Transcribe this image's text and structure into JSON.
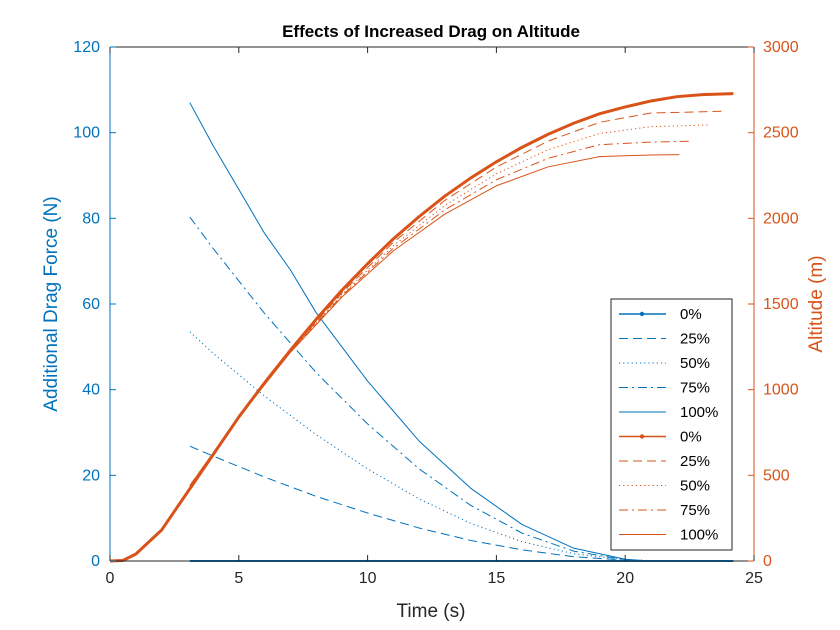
{
  "chart_data": {
    "type": "line",
    "title": "Effects of Increased Drag on Altitude",
    "xlabel": "Time (s)",
    "ylabel_left": "Additional Drag Force (N)",
    "ylabel_right": "Altitude (m)",
    "xlim": [
      0,
      25
    ],
    "ylim_left": [
      0,
      120
    ],
    "ylim_right": [
      0,
      3000
    ],
    "xticks": [
      "0",
      "5",
      "10",
      "15",
      "20",
      "25"
    ],
    "yticks_left": [
      "0",
      "20",
      "40",
      "60",
      "80",
      "100",
      "120"
    ],
    "yticks_right": [
      "0",
      "500",
      "1000",
      "1500",
      "2000",
      "2500",
      "3000"
    ],
    "grid": false,
    "legend_position": "bottom-right",
    "colors": {
      "left_axis": "#0072BD",
      "right_axis": "#D95319"
    },
    "series": [
      {
        "name": "0%",
        "axis": "left",
        "style": "solid-dot",
        "x": [
          3.1,
          24.2
        ],
        "y": [
          0,
          0
        ]
      },
      {
        "name": "25%",
        "axis": "left",
        "style": "dashed",
        "x": [
          3.1,
          4,
          6,
          8,
          10,
          12,
          14,
          16,
          18,
          20,
          21.5
        ],
        "y": [
          26.8,
          24.5,
          19.6,
          15.1,
          11.2,
          7.7,
          4.8,
          2.6,
          1.0,
          0.2,
          0
        ]
      },
      {
        "name": "50%",
        "axis": "left",
        "style": "dotted",
        "x": [
          3.1,
          4,
          6,
          8,
          10,
          12,
          14,
          16,
          18,
          20,
          21.5
        ],
        "y": [
          53.5,
          48.5,
          38.5,
          29.5,
          21.5,
          14.5,
          8.8,
          4.5,
          1.7,
          0.3,
          0
        ]
      },
      {
        "name": "75%",
        "axis": "left",
        "style": "dashdot",
        "x": [
          3.1,
          4,
          6,
          8,
          10,
          12,
          14,
          16,
          18,
          20,
          21
        ],
        "y": [
          80.3,
          73.0,
          57.8,
          44.0,
          32.0,
          21.5,
          13.0,
          6.5,
          2.3,
          0.3,
          0
        ]
      },
      {
        "name": "100%",
        "axis": "left",
        "style": "solid",
        "x": [
          3.1,
          4,
          6,
          7,
          8,
          10,
          12,
          14,
          16,
          18,
          20,
          21
        ],
        "y": [
          107.0,
          97.0,
          76.5,
          68.0,
          58.0,
          42.0,
          28.0,
          17.0,
          8.5,
          3.0,
          0.4,
          0
        ]
      },
      {
        "name": "0%",
        "axis": "right",
        "style": "thick-solid",
        "x": [
          0,
          0.5,
          1,
          2,
          3,
          4,
          5,
          6,
          7,
          8,
          9,
          10,
          11,
          12,
          13,
          14,
          15,
          16,
          17,
          18,
          19,
          20,
          21,
          22,
          23,
          24.2
        ],
        "y": [
          0,
          3,
          40,
          180,
          400,
          620,
          840,
          1040,
          1230,
          1410,
          1580,
          1735,
          1880,
          2010,
          2130,
          2235,
          2330,
          2415,
          2490,
          2555,
          2610,
          2650,
          2685,
          2710,
          2722,
          2728
        ]
      },
      {
        "name": "25%",
        "axis": "right",
        "style": "dashed",
        "x": [
          3.1,
          5,
          7,
          9,
          11,
          13,
          15,
          17,
          19,
          21,
          22.5,
          23.8
        ],
        "y": [
          440,
          840,
          1225,
          1565,
          1860,
          2105,
          2300,
          2450,
          2560,
          2615,
          2620,
          2625
        ]
      },
      {
        "name": "50%",
        "axis": "right",
        "style": "dotted",
        "x": [
          3.1,
          5,
          7,
          9,
          11,
          13,
          15,
          17,
          19,
          21,
          22.2,
          23.2
        ],
        "y": [
          440,
          840,
          1222,
          1555,
          1840,
          2075,
          2260,
          2400,
          2495,
          2535,
          2540,
          2545
        ]
      },
      {
        "name": "75%",
        "axis": "right",
        "style": "dashdot",
        "x": [
          3.1,
          5,
          7,
          9,
          11,
          13,
          15,
          17,
          19,
          21,
          22.6
        ],
        "y": [
          440,
          840,
          1220,
          1548,
          1825,
          2050,
          2225,
          2350,
          2430,
          2445,
          2450
        ]
      },
      {
        "name": "100%",
        "axis": "right",
        "style": "solid",
        "x": [
          3.1,
          5,
          7,
          9,
          11,
          13,
          15,
          17,
          19,
          21,
          22.1
        ],
        "y": [
          440,
          840,
          1217,
          1540,
          1810,
          2025,
          2190,
          2300,
          2360,
          2370,
          2372
        ]
      }
    ]
  }
}
